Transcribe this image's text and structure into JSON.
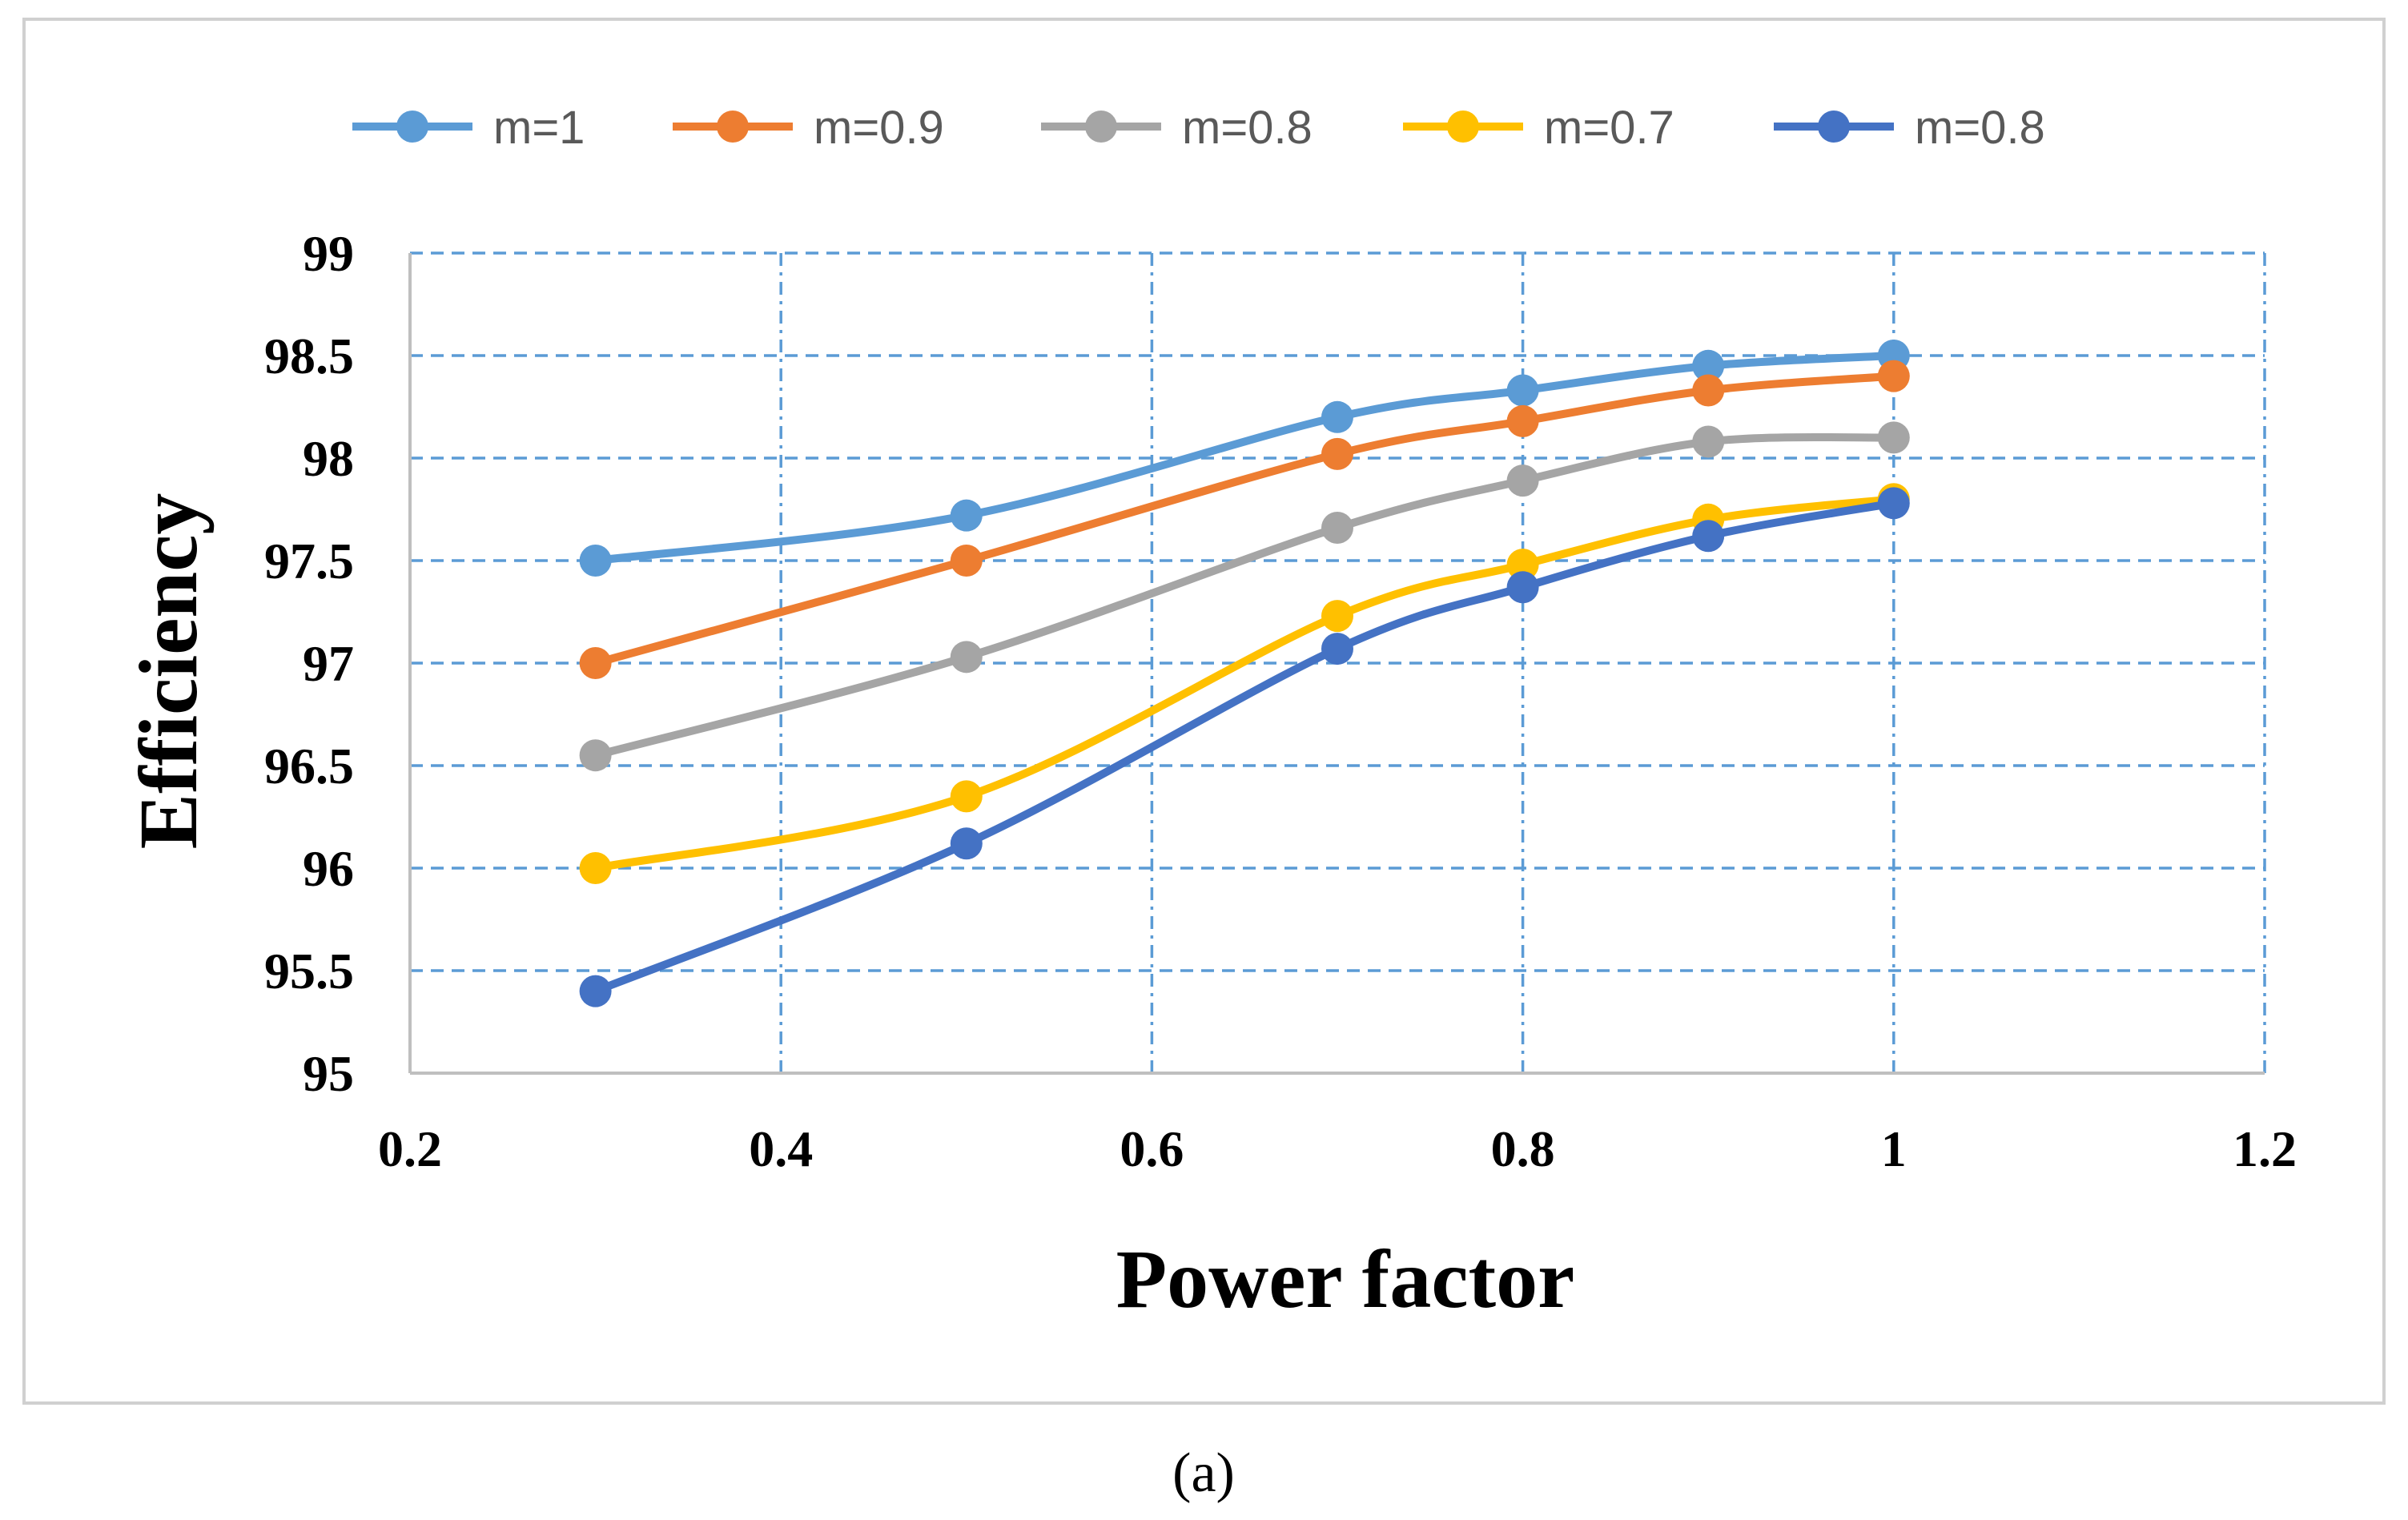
{
  "chart_data": {
    "type": "line",
    "smooth": true,
    "xlabel": "Power factor",
    "ylabel": "Efficiency",
    "xlim": [
      0.2,
      1.2
    ],
    "ylim": [
      95,
      99
    ],
    "xticks": [
      "0.2",
      "0.4",
      "0.6",
      "0.8",
      "1",
      "1.2"
    ],
    "yticks": [
      "95",
      "95.5",
      "96",
      "96.5",
      "97",
      "97.5",
      "98",
      "98.5",
      "99"
    ],
    "xtick_values": [
      0.2,
      0.4,
      0.6,
      0.8,
      1.0,
      1.2
    ],
    "ytick_values": [
      95,
      95.5,
      96,
      96.5,
      97,
      97.5,
      98,
      98.5,
      99
    ],
    "grid": true,
    "legend_position": "top",
    "x": [
      0.3,
      0.5,
      0.7,
      0.8,
      0.9,
      1.0
    ],
    "series": [
      {
        "name": "m=1",
        "color": "#5b9bd5",
        "values": [
          97.5,
          97.72,
          98.2,
          98.33,
          98.45,
          98.5
        ]
      },
      {
        "name": "m=0.9",
        "color": "#ed7d31",
        "values": [
          97.0,
          97.5,
          98.02,
          98.18,
          98.33,
          98.4
        ]
      },
      {
        "name": "m=0.8",
        "color": "#a5a5a5",
        "values": [
          96.55,
          97.03,
          97.66,
          97.89,
          98.08,
          98.1
        ]
      },
      {
        "name": "m=0.7",
        "color": "#ffc000",
        "values": [
          96.0,
          96.35,
          97.23,
          97.48,
          97.7,
          97.8
        ]
      },
      {
        "name": "m=0.8",
        "color": "#4472c4",
        "values": [
          95.4,
          96.12,
          97.07,
          97.37,
          97.62,
          97.78
        ]
      }
    ]
  },
  "caption": "(a)"
}
